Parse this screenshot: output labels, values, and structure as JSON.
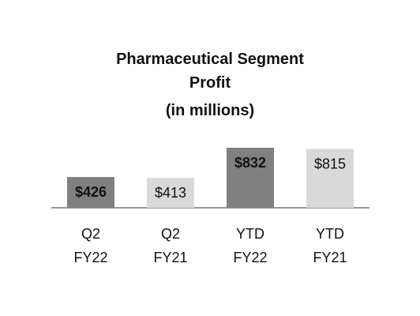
{
  "chart_data": {
    "type": "bar",
    "title": "Pharmaceutical Segment Profit",
    "subtitle": "(in millions)",
    "categories": [
      "Q2 FY22",
      "Q2 FY21",
      "YTD FY22",
      "YTD FY21"
    ],
    "values": [
      426,
      413,
      832,
      815
    ],
    "value_labels": [
      "$426",
      "$413",
      "$832",
      "$815"
    ],
    "colors": [
      "#808080",
      "#d9d9d9",
      "#808080",
      "#d9d9d9"
    ]
  }
}
